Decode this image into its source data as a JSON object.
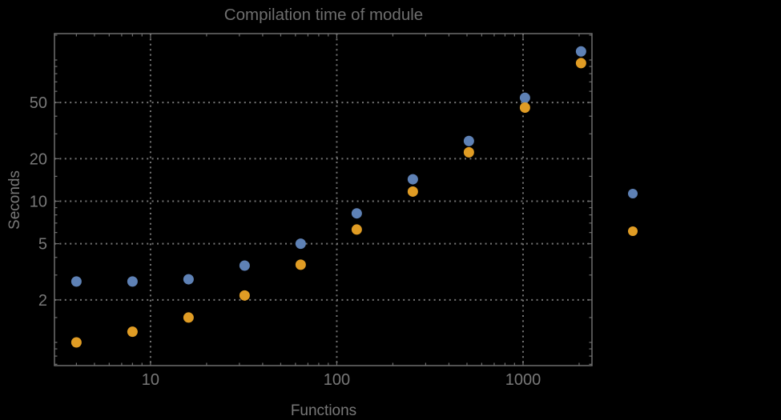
{
  "chart_data": {
    "type": "scatter",
    "title": "Compilation time of module",
    "xlabel": "Functions",
    "ylabel": "Seconds",
    "x_scale": "log",
    "y_scale": "log",
    "xlim": [
      3.05,
      2344
    ],
    "ylim": [
      0.685,
      153.8
    ],
    "grid": "dotted major gridlines, gray on black",
    "legend_position": "outside-right",
    "x_major_ticks": [
      10,
      100,
      1000
    ],
    "x_tick_labels": [
      "10",
      "100",
      "1000"
    ],
    "y_major_ticks": [
      2,
      5,
      10,
      20,
      50
    ],
    "y_tick_labels": [
      "2",
      "5",
      "10",
      "20",
      "50"
    ],
    "x": [
      4,
      8,
      16,
      32,
      64,
      128,
      256,
      512,
      1024,
      2048
    ],
    "series": [
      {
        "name": "series-blue",
        "color": "#5E81B5",
        "values": [
          2.7,
          2.7,
          2.8,
          3.5,
          5.0,
          8.2,
          14.3,
          26.7,
          54,
          115
        ]
      },
      {
        "name": "series-orange",
        "color": "#E09C24",
        "values": [
          1.0,
          1.19,
          1.5,
          2.15,
          3.55,
          6.3,
          11.7,
          22.2,
          46,
          95
        ]
      }
    ],
    "legend_markers": [
      {
        "name": "legend-marker-blue",
        "color": "#5E81B5",
        "label": ""
      },
      {
        "name": "legend-marker-orange",
        "color": "#E09C24",
        "label": ""
      }
    ]
  },
  "style": {
    "background": "#000000",
    "title_color": "#6e6e6e",
    "text_color": "#787878",
    "frame_color": "#6e6e6e",
    "grid_color": "#757575",
    "point_blue": "#5E81B5",
    "point_orange": "#E09C24"
  }
}
